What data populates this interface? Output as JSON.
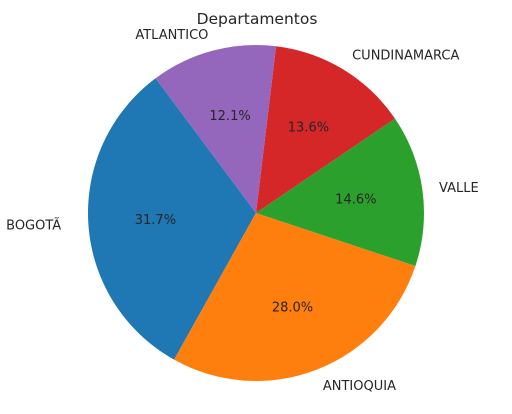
{
  "chart_data": {
    "type": "pie",
    "title": "Departamentos",
    "labels": [
      "BOGOTÃ",
      "ANTIOQUIA",
      "VALLE",
      "CUNDINAMARCA",
      "ATLANTICO"
    ],
    "values": [
      31.7,
      28.0,
      14.6,
      13.6,
      12.1
    ],
    "value_labels": [
      "31.7%",
      "28.0%",
      "14.6%",
      "13.6%",
      "12.1%"
    ],
    "colors": [
      "#1f77b4",
      "#ff7f0e",
      "#2ca02c",
      "#d62728",
      "#9467bd"
    ]
  }
}
